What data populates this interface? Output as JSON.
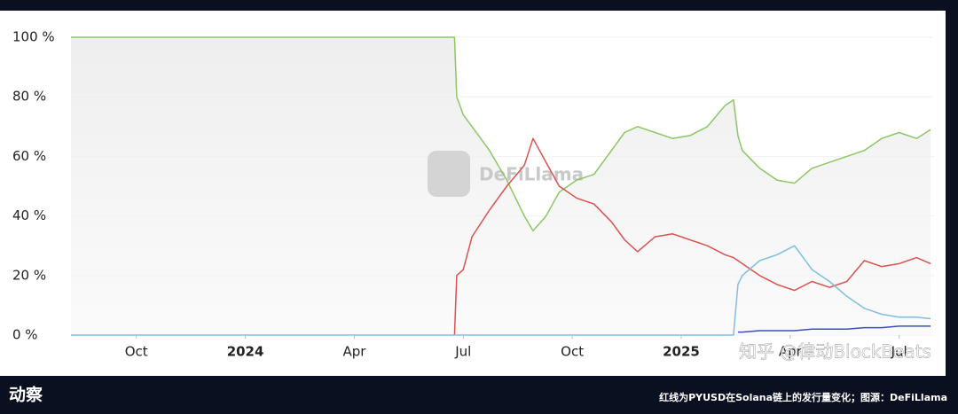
{
  "chart_data": {
    "type": "line",
    "x": [
      2023.6,
      2024.48,
      2024.485,
      2024.5,
      2024.52,
      2024.56,
      2024.6,
      2024.64,
      2024.66,
      2024.69,
      2024.72,
      2024.76,
      2024.8,
      2024.84,
      2024.87,
      2024.9,
      2024.94,
      2024.98,
      2025.02,
      2025.06,
      2025.1,
      2025.12,
      2025.13,
      2025.14,
      2025.18,
      2025.22,
      2025.26,
      2025.3,
      2025.34,
      2025.38,
      2025.42,
      2025.46,
      2025.5,
      2025.54,
      2025.572
    ],
    "series": [
      {
        "color": "#8cc665",
        "values": [
          100,
          100,
          80,
          74,
          70,
          62,
          52,
          40,
          35,
          40,
          48,
          52,
          54,
          62,
          68,
          70,
          68,
          66,
          67,
          70,
          77,
          79,
          67,
          62,
          56,
          52,
          51,
          56,
          58,
          60,
          62,
          66,
          68,
          66,
          69
        ]
      },
      {
        "color": "#d9534f",
        "values": [
          null,
          0,
          20,
          22,
          33,
          42,
          50,
          57,
          66,
          58,
          50,
          46,
          44,
          38,
          32,
          28,
          33,
          34,
          32,
          30,
          27,
          26,
          25,
          24,
          20,
          17,
          15,
          18,
          16,
          18,
          25,
          23,
          24,
          26,
          24
        ]
      },
      {
        "color": "#7fbfe0",
        "values": [
          0,
          0,
          0,
          0,
          0,
          0,
          0,
          0,
          0,
          0,
          0,
          0,
          0,
          0,
          0,
          0,
          0,
          0,
          0,
          0,
          0,
          0,
          17,
          20,
          25,
          27,
          30,
          22,
          18,
          13,
          9,
          7,
          6,
          6,
          5.5
        ]
      },
      {
        "color": "#3a4fc0",
        "values": [
          null,
          null,
          null,
          null,
          null,
          null,
          null,
          null,
          null,
          null,
          null,
          null,
          null,
          null,
          null,
          null,
          null,
          null,
          null,
          null,
          null,
          null,
          1,
          1,
          1.5,
          1.5,
          1.5,
          2,
          2,
          2,
          2.5,
          2.5,
          3,
          3,
          3
        ]
      }
    ],
    "xlim": [
      2023.6,
      2025.58
    ],
    "xticks": [
      {
        "value": 2023.75,
        "label": "Oct"
      },
      2024,
      {
        "value": 2024.25,
        "label": "Apr"
      },
      {
        "value": 2024.5,
        "label": "Jul"
      },
      {
        "value": 2024.75,
        "label": "Oct"
      },
      2025,
      {
        "value": 2025.25,
        "label": "Apr"
      },
      {
        "value": 2025.5,
        "label": "Jul"
      }
    ],
    "ylim": [
      0,
      100
    ],
    "yticks": [
      {
        "value": 0,
        "label": "0 %"
      },
      {
        "value": 20,
        "label": "20 %"
      },
      {
        "value": 40,
        "label": "40 %"
      },
      {
        "value": 60,
        "label": "60 %"
      },
      {
        "value": 80,
        "label": "80 %"
      },
      {
        "value": 100,
        "label": "100 %"
      }
    ],
    "grid": true,
    "annotations": [
      "DeFiLlama",
      "知乎 @律动BlockBeats"
    ],
    "footer_left": "动察",
    "footer_caption": "红线为PYUSD在Solana链上的发行量变化；图源：DeFiLlama"
  }
}
